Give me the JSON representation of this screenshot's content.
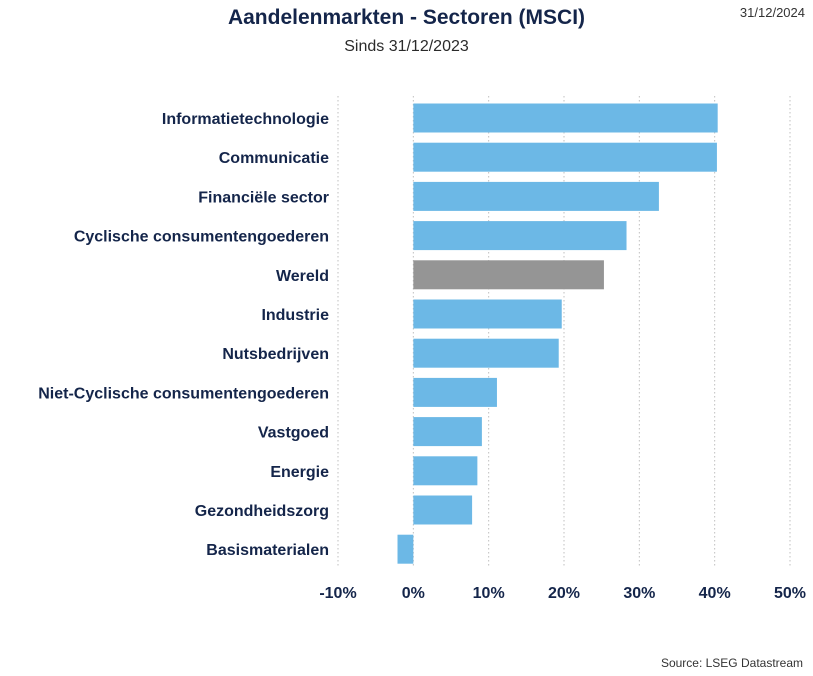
{
  "header": {
    "title": "Aandelenmarkten - Sectoren (MSCI)",
    "subtitle": "Sinds 31/12/2023",
    "date": "31/12/2024"
  },
  "footer": {
    "source": "Source: LSEG Datastream"
  },
  "colors": {
    "bar": "#6cb8e6",
    "highlight": "#959595",
    "grid": "#bfbfbf"
  },
  "chart_data": {
    "type": "bar",
    "orientation": "horizontal",
    "title": "Aandelenmarkten - Sectoren (MSCI)",
    "subtitle": "Sinds 31/12/2023",
    "categories": [
      "Informatietechnologie",
      "Communicatie",
      "Financiële sector",
      "Cyclische consumentengoederen",
      "Wereld",
      "Industrie",
      "Nutsbedrijven",
      "Niet-Cyclische consumentengoederen",
      "Vastgoed",
      "Energie",
      "Gezondheidszorg",
      "Basismaterialen"
    ],
    "values": [
      40.4,
      40.3,
      32.6,
      28.3,
      25.3,
      19.7,
      19.3,
      11.1,
      9.1,
      8.5,
      7.8,
      -2.1
    ],
    "highlight": "Wereld",
    "xlim": [
      -10,
      50
    ],
    "xticks": [
      -10,
      0,
      10,
      20,
      30,
      40,
      50
    ],
    "xtick_labels": [
      "-10%",
      "0%",
      "10%",
      "20%",
      "30%",
      "40%",
      "50%"
    ],
    "grid": "vertical dotted",
    "legend": "none"
  }
}
